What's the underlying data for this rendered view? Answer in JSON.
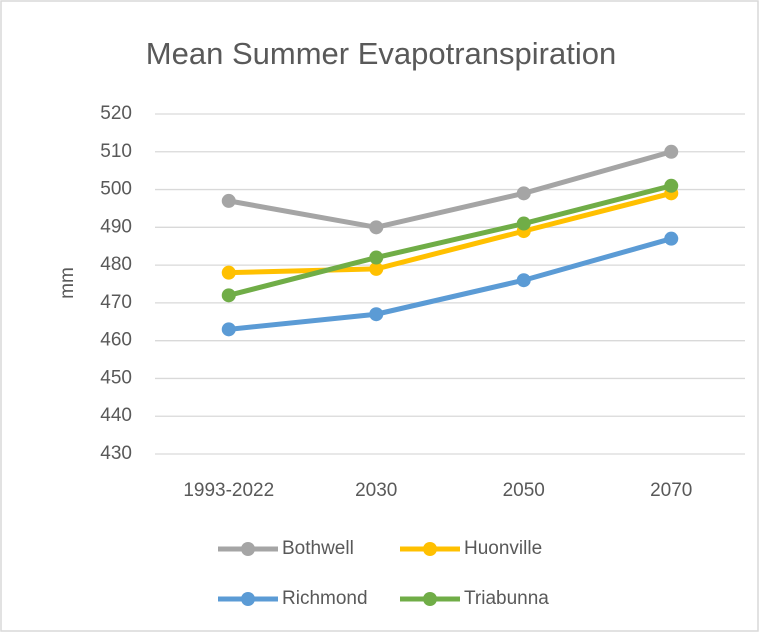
{
  "chart_data": {
    "type": "line",
    "title": "Mean Summer Evapotranspiration",
    "y_label": "mm",
    "categories": [
      "1993-2022",
      "2030",
      "2050",
      "2070"
    ],
    "series": [
      {
        "name": "Bothwell",
        "color": "#a5a5a5",
        "values": [
          497,
          490,
          499,
          510
        ]
      },
      {
        "name": "Huonville",
        "color": "#ffc000",
        "values": [
          478,
          479,
          489,
          499
        ]
      },
      {
        "name": "Richmond",
        "color": "#5b9bd5",
        "values": [
          463,
          467,
          476,
          487
        ]
      },
      {
        "name": "Triabunna",
        "color": "#70ad47",
        "values": [
          472,
          482,
          491,
          501
        ]
      }
    ],
    "ylim": [
      430,
      520
    ],
    "yticks": [
      430,
      440,
      450,
      460,
      470,
      480,
      490,
      500,
      510,
      520
    ],
    "grid": true,
    "legend": "bottom"
  }
}
